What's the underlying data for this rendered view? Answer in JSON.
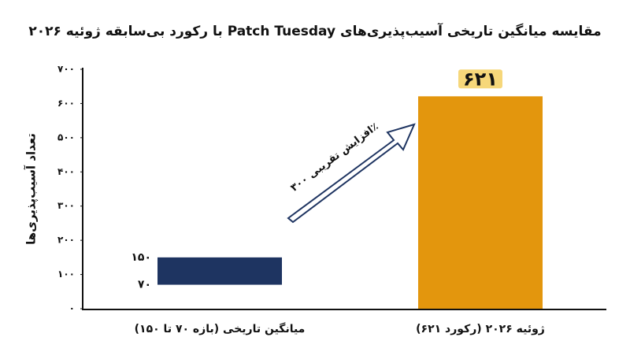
{
  "chart_data": {
    "type": "bar",
    "title": "مقایسه میانگین تاریخی آسیب‌پذیری‌های Patch Tuesday با رکورد بی‌سابقه ژوئیه ۲۰۲۶",
    "y_label": "تعداد آسیب‌پذیری‌ها",
    "ylim": [
      0,
      700
    ],
    "yticks": [
      {
        "value": 0,
        "label": "۰"
      },
      {
        "value": 100,
        "label": "۱۰۰"
      },
      {
        "value": 200,
        "label": "۲۰۰"
      },
      {
        "value": 300,
        "label": "۳۰۰"
      },
      {
        "value": 400,
        "label": "۴۰۰"
      },
      {
        "value": 500,
        "label": "۵۰۰"
      },
      {
        "value": 600,
        "label": "۶۰۰"
      },
      {
        "value": 700,
        "label": "۷۰۰"
      }
    ],
    "bars": [
      {
        "category": "میانگین تاریخی (بازه ۷۰ تا ۱۵۰)",
        "low": 70,
        "high": 150,
        "low_label": "۷۰",
        "high_label": "۱۵۰",
        "color": "#1e3461"
      },
      {
        "category": "ژوئیه ۲۰۲۶ (رکورد ۶۲۱)",
        "value": 621,
        "value_label": "۶۲۱",
        "color": "#e3960d"
      }
    ],
    "annotation": "افزایش تقریبی ۳۰۰٪"
  }
}
